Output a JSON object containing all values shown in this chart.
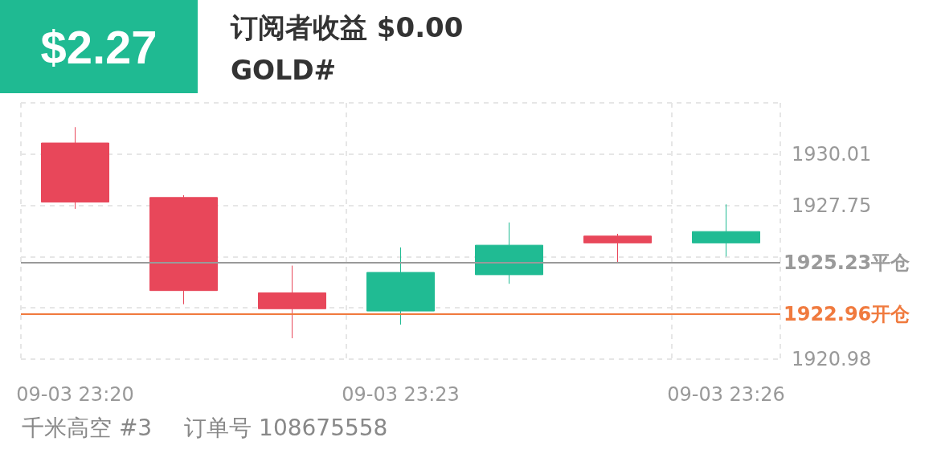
{
  "chart_data": {
    "type": "candlestick",
    "title": "订阅者收益 $0.00",
    "subtitle": "GOLD#",
    "annotations": [
      "$2.27",
      "千米高空 #3",
      "订单号 108675558"
    ],
    "categories": [
      "09-03 23:20",
      null,
      null,
      "09-03 23:23",
      null,
      null,
      "09-03 23:26"
    ],
    "ohlc": [
      [
        1930.5,
        1931.2,
        1927.6,
        1927.9
      ],
      [
        1928.1,
        1928.2,
        1923.4,
        1924.0
      ],
      [
        1923.9,
        1925.1,
        1921.9,
        1923.2
      ],
      [
        1923.1,
        1925.9,
        1922.5,
        1924.8
      ],
      [
        1924.7,
        1927.0,
        1924.3,
        1926.0
      ],
      [
        1926.4,
        1926.5,
        1925.2,
        1926.1
      ],
      [
        1926.1,
        1927.8,
        1925.5,
        1926.6
      ]
    ],
    "colors": [
      "#e8475a",
      "#e8475a",
      "#e8475a",
      "#20bb93",
      "#20bb93",
      "#e8475a",
      "#20bb93"
    ],
    "ylim": [
      1920.98,
      1932.27
    ],
    "yticks": [
      1920.98,
      {
        "value": 1923.24,
        "label": null
      },
      {
        "value": 1925.49,
        "label": null
      },
      1927.75,
      1930.01,
      {
        "value": 1932.27,
        "label": null
      }
    ],
    "ref_lines": [
      {
        "axis": "y",
        "value": 1925.23,
        "label": "1925.23平仓",
        "color": "#9a9a9a"
      },
      {
        "axis": "y",
        "value": 1922.96,
        "label": "1922.96开仓",
        "color": "#f07a3e"
      }
    ],
    "grid": true
  }
}
